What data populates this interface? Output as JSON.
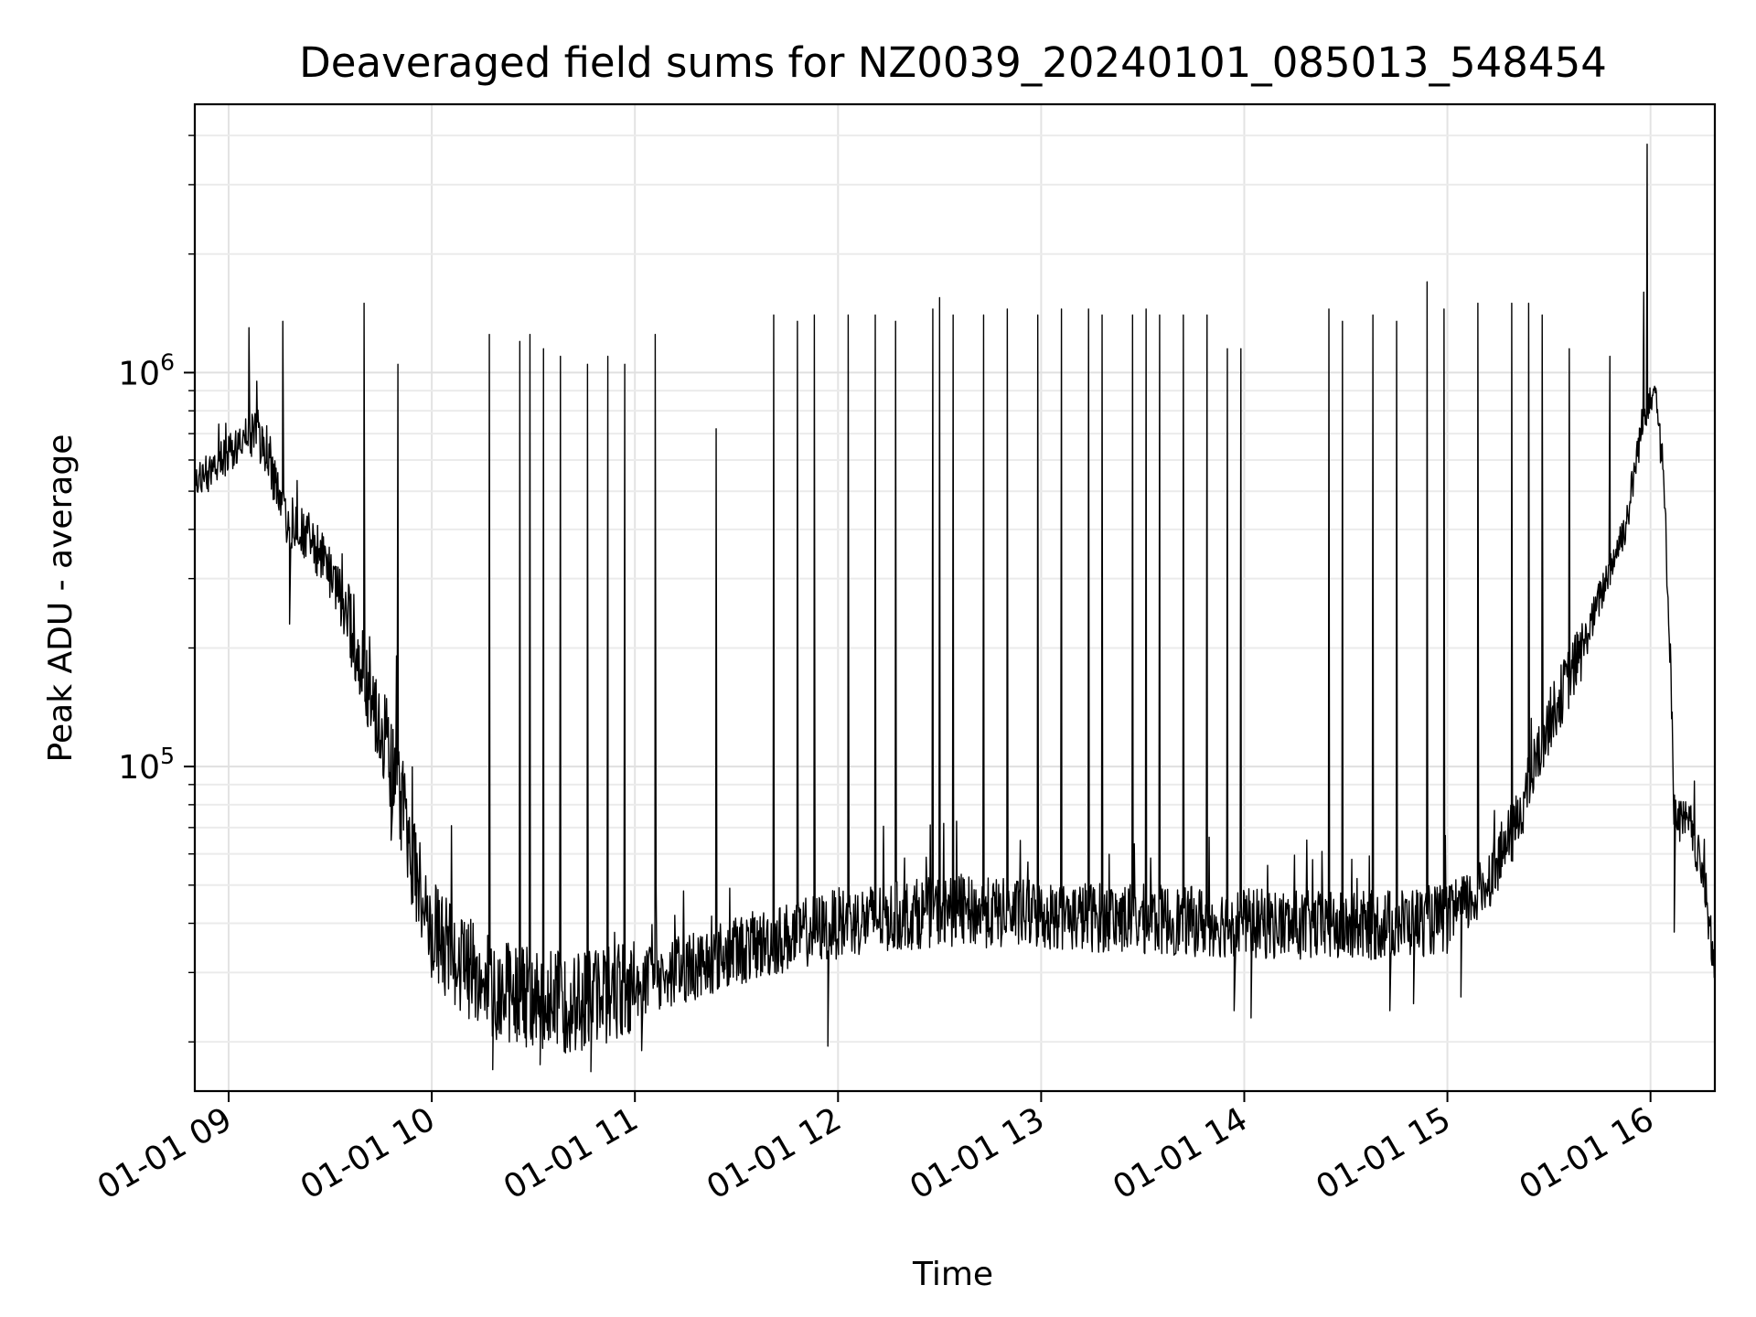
{
  "chart_data": {
    "type": "line",
    "title": "Deaveraged field sums for NZ0039_20240101_085013_548454",
    "xlabel": "Time",
    "ylabel": "Peak ADU - average",
    "yscale": "log",
    "xlim": [
      "2024-01-01 08:50",
      "2024-01-01 16:19"
    ],
    "ylim": [
      15000,
      4800000
    ],
    "grid": true,
    "line_color": "#000000",
    "x_ticks": [
      {
        "value": "2024-01-01 09:00",
        "label": "01-01 09"
      },
      {
        "value": "2024-01-01 10:00",
        "label": "01-01 10"
      },
      {
        "value": "2024-01-01 11:00",
        "label": "01-01 11"
      },
      {
        "value": "2024-01-01 12:00",
        "label": "01-01 12"
      },
      {
        "value": "2024-01-01 13:00",
        "label": "01-01 13"
      },
      {
        "value": "2024-01-01 14:00",
        "label": "01-01 14"
      },
      {
        "value": "2024-01-01 15:00",
        "label": "01-01 15"
      },
      {
        "value": "2024-01-01 16:00",
        "label": "01-01 16"
      }
    ],
    "y_ticks": [
      {
        "value": 100000,
        "base": "10",
        "exp": "5"
      },
      {
        "value": 1000000,
        "base": "10",
        "exp": "6"
      }
    ],
    "baseline": [
      [
        "2024-01-01 08:50",
        520000
      ],
      [
        "2024-01-01 09:00",
        620000
      ],
      [
        "2024-01-01 09:08",
        720000
      ],
      [
        "2024-01-01 09:12",
        620000
      ],
      [
        "2024-01-01 09:16",
        430000
      ],
      [
        "2024-01-01 09:25",
        370000
      ],
      [
        "2024-01-01 09:33",
        270000
      ],
      [
        "2024-01-01 09:40",
        180000
      ],
      [
        "2024-01-01 09:45",
        130000
      ],
      [
        "2024-01-01 09:50",
        90000
      ],
      [
        "2024-01-01 09:55",
        55000
      ],
      [
        "2024-01-01 10:00",
        38000
      ],
      [
        "2024-01-01 10:10",
        31000
      ],
      [
        "2024-01-01 10:20",
        27000
      ],
      [
        "2024-01-01 10:40",
        25000
      ],
      [
        "2024-01-01 11:00",
        28000
      ],
      [
        "2024-01-01 11:30",
        34000
      ],
      [
        "2024-01-01 12:00",
        40000
      ],
      [
        "2024-01-01 12:30",
        43000
      ],
      [
        "2024-01-01 13:00",
        42000
      ],
      [
        "2024-01-01 13:30",
        41000
      ],
      [
        "2024-01-01 14:00",
        40000
      ],
      [
        "2024-01-01 14:30",
        39000
      ],
      [
        "2024-01-01 15:00",
        41000
      ],
      [
        "2024-01-01 15:10",
        48000
      ],
      [
        "2024-01-01 15:20",
        70000
      ],
      [
        "2024-01-01 15:30",
        130000
      ],
      [
        "2024-01-01 15:40",
        200000
      ],
      [
        "2024-01-01 15:47",
        300000
      ],
      [
        "2024-01-01 15:53",
        420000
      ],
      [
        "2024-01-01 15:57",
        700000
      ],
      [
        "2024-01-01 16:00",
        900000
      ],
      [
        "2024-01-01 16:02",
        880000
      ],
      [
        "2024-01-01 16:04",
        500000
      ],
      [
        "2024-01-01 16:06",
        180000
      ],
      [
        "2024-01-01 16:07",
        75000
      ],
      [
        "2024-01-01 16:12",
        70000
      ],
      [
        "2024-01-01 16:16",
        50000
      ],
      [
        "2024-01-01 16:19",
        30000
      ]
    ],
    "spikes": [
      [
        "2024-01-01 09:06",
        1300000
      ],
      [
        "2024-01-01 09:16",
        1350000
      ],
      [
        "2024-01-01 09:40",
        1500000
      ],
      [
        "2024-01-01 09:50",
        1050000
      ],
      [
        "2024-01-01 10:17",
        1250000
      ],
      [
        "2024-01-01 10:26",
        1200000
      ],
      [
        "2024-01-01 10:29",
        1250000
      ],
      [
        "2024-01-01 10:33",
        1150000
      ],
      [
        "2024-01-01 10:38",
        1100000
      ],
      [
        "2024-01-01 10:46",
        1050000
      ],
      [
        "2024-01-01 10:52",
        1100000
      ],
      [
        "2024-01-01 10:57",
        1050000
      ],
      [
        "2024-01-01 11:06",
        1250000
      ],
      [
        "2024-01-01 11:24",
        720000
      ],
      [
        "2024-01-01 11:41",
        1400000
      ],
      [
        "2024-01-01 11:48",
        1350000
      ],
      [
        "2024-01-01 11:53",
        1400000
      ],
      [
        "2024-01-01 12:03",
        1400000
      ],
      [
        "2024-01-01 12:11",
        1400000
      ],
      [
        "2024-01-01 12:17",
        1350000
      ],
      [
        "2024-01-01 12:28",
        1450000
      ],
      [
        "2024-01-01 12:30",
        1550000
      ],
      [
        "2024-01-01 12:34",
        1400000
      ],
      [
        "2024-01-01 12:43",
        1400000
      ],
      [
        "2024-01-01 12:50",
        1450000
      ],
      [
        "2024-01-01 12:59",
        1400000
      ],
      [
        "2024-01-01 13:06",
        1450000
      ],
      [
        "2024-01-01 13:14",
        1450000
      ],
      [
        "2024-01-01 13:18",
        1400000
      ],
      [
        "2024-01-01 13:27",
        1400000
      ],
      [
        "2024-01-01 13:31",
        1450000
      ],
      [
        "2024-01-01 13:35",
        1400000
      ],
      [
        "2024-01-01 13:42",
        1400000
      ],
      [
        "2024-01-01 13:49",
        1400000
      ],
      [
        "2024-01-01 13:55",
        1150000
      ],
      [
        "2024-01-01 13:59",
        1150000
      ],
      [
        "2024-01-01 14:25",
        1450000
      ],
      [
        "2024-01-01 14:29",
        1350000
      ],
      [
        "2024-01-01 14:38",
        1400000
      ],
      [
        "2024-01-01 14:45",
        1350000
      ],
      [
        "2024-01-01 14:54",
        1700000
      ],
      [
        "2024-01-01 14:59",
        1450000
      ],
      [
        "2024-01-01 15:09",
        1500000
      ],
      [
        "2024-01-01 15:19",
        1500000
      ],
      [
        "2024-01-01 15:24",
        1500000
      ],
      [
        "2024-01-01 15:28",
        1400000
      ],
      [
        "2024-01-01 15:36",
        1150000
      ],
      [
        "2024-01-01 15:48",
        1100000
      ],
      [
        "2024-01-01 15:58",
        1600000
      ],
      [
        "2024-01-01 15:59",
        3800000
      ]
    ],
    "dips": [
      [
        "2024-01-01 09:18",
        230000
      ],
      [
        "2024-01-01 09:48",
        65000
      ],
      [
        "2024-01-01 10:18",
        17000
      ],
      [
        "2024-01-01 10:32",
        17500
      ],
      [
        "2024-01-01 10:47",
        16800
      ],
      [
        "2024-01-01 11:02",
        19000
      ],
      [
        "2024-01-01 11:57",
        19500
      ],
      [
        "2024-01-01 13:57",
        24000
      ],
      [
        "2024-01-01 14:02",
        23000
      ],
      [
        "2024-01-01 14:43",
        24000
      ],
      [
        "2024-01-01 14:50",
        25000
      ],
      [
        "2024-01-01 15:04",
        26000
      ],
      [
        "2024-01-01 16:07",
        38000
      ]
    ]
  }
}
